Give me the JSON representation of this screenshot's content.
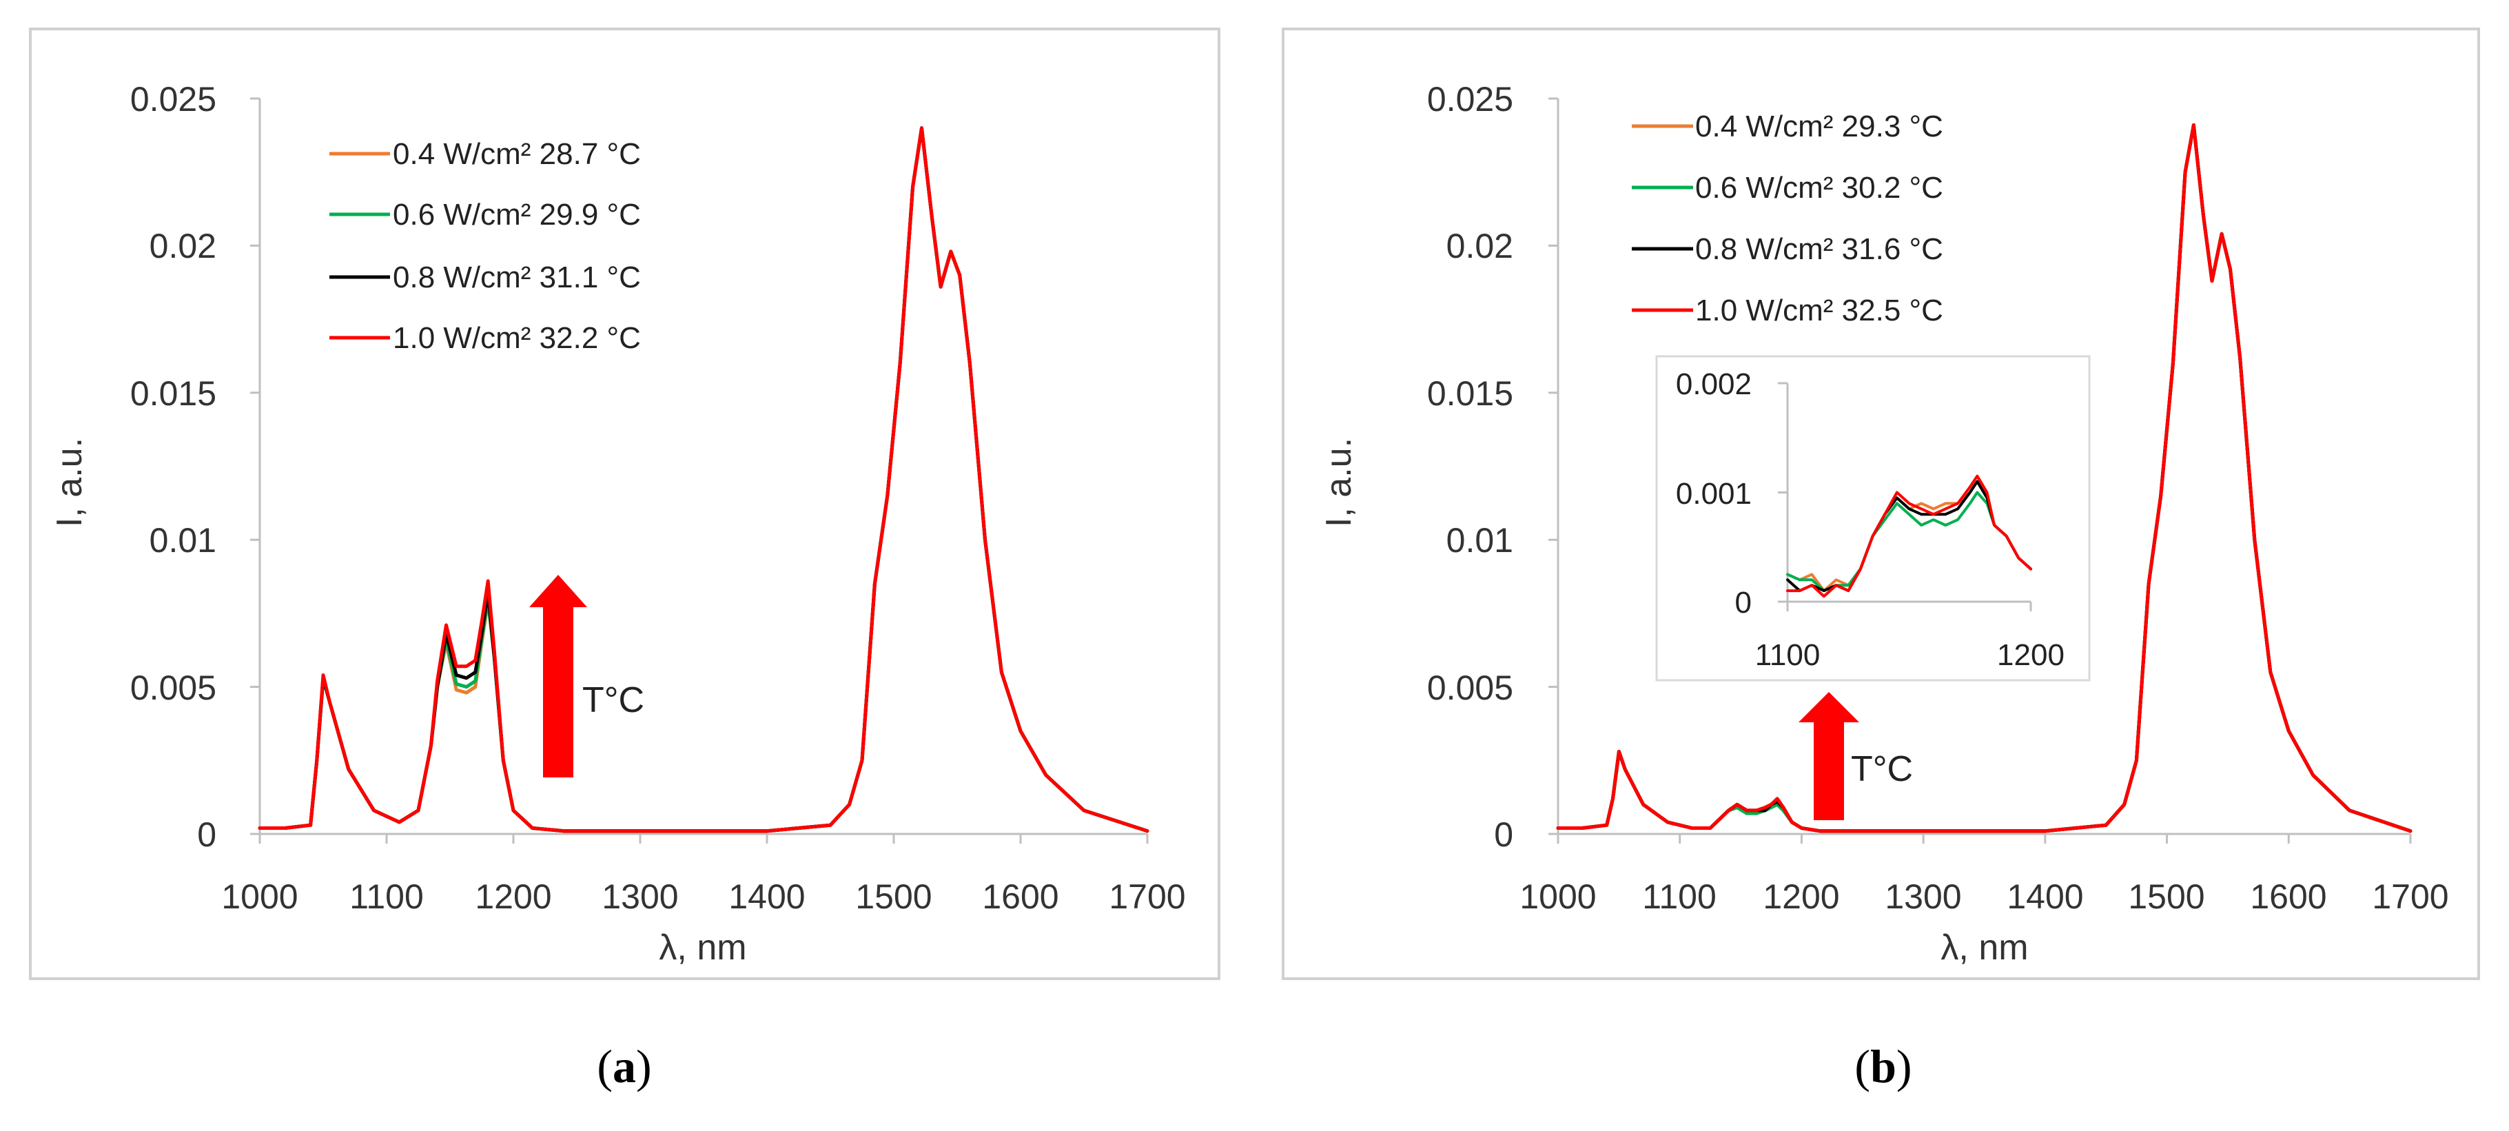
{
  "colors": {
    "orange": "#ED7D31",
    "green": "#00B050",
    "black": "#000000",
    "red": "#FF0000",
    "frame": "#d0d0d0",
    "axis": "#bfbfbf",
    "arrow": "#FF0000"
  },
  "chart_data": [
    {
      "type": "line",
      "panel_label": {
        "open": "(",
        "letter": "a",
        "close": ")"
      },
      "xlabel": "λ, nm",
      "ylabel": "I, a.u.",
      "xlim": [
        1000,
        1700
      ],
      "ylim": [
        0,
        0.025
      ],
      "xticks": [
        "1000",
        "1100",
        "1200",
        "1300",
        "1400",
        "1500",
        "1600",
        "1700"
      ],
      "yticks": [
        "0",
        "0.005",
        "0.01",
        "0.015",
        "0.02",
        "0.025"
      ],
      "legend_position": "top-left",
      "annotation": "T°C",
      "x": [
        1000,
        1020,
        1040,
        1045,
        1050,
        1055,
        1070,
        1090,
        1110,
        1125,
        1135,
        1140,
        1147,
        1155,
        1163,
        1170,
        1175,
        1180,
        1185,
        1192,
        1200,
        1215,
        1240,
        1300,
        1400,
        1450,
        1465,
        1475,
        1485,
        1495,
        1505,
        1515,
        1522,
        1530,
        1537,
        1545,
        1552,
        1560,
        1572,
        1585,
        1600,
        1620,
        1650,
        1700
      ],
      "series": [
        {
          "name": "0.4 W/cm² 28.7 °C",
          "color": "#ED7D31",
          "values": [
            0.0002,
            0.0002,
            0.0003,
            0.0025,
            0.0053,
            0.0045,
            0.0022,
            0.0008,
            0.0004,
            0.0008,
            0.003,
            0.005,
            0.0065,
            0.0049,
            0.0048,
            0.005,
            0.0065,
            0.0079,
            0.006,
            0.0025,
            0.0008,
            0.0002,
            0.0001,
            0.0001,
            0.0001,
            0.0003,
            0.001,
            0.0025,
            0.0085,
            0.0115,
            0.016,
            0.022,
            0.024,
            0.021,
            0.0186,
            0.0198,
            0.019,
            0.016,
            0.01,
            0.0055,
            0.0035,
            0.002,
            0.0008,
            0.0001
          ]
        },
        {
          "name": "0.6 W/cm² 29.9 °C",
          "color": "#00B050",
          "values": [
            0.0002,
            0.0002,
            0.0003,
            0.0025,
            0.0053,
            0.0045,
            0.0022,
            0.0008,
            0.0004,
            0.0008,
            0.003,
            0.005,
            0.0066,
            0.0051,
            0.005,
            0.0052,
            0.0066,
            0.008,
            0.006,
            0.0025,
            0.0008,
            0.0002,
            0.0001,
            0.0001,
            0.0001,
            0.0003,
            0.001,
            0.0025,
            0.0085,
            0.0115,
            0.016,
            0.022,
            0.024,
            0.021,
            0.0186,
            0.0198,
            0.019,
            0.016,
            0.01,
            0.0055,
            0.0035,
            0.002,
            0.0008,
            0.0001
          ]
        },
        {
          "name": "0.8 W/cm² 31.1 °C",
          "color": "#000000",
          "values": [
            0.0002,
            0.0002,
            0.0003,
            0.0025,
            0.0053,
            0.0045,
            0.0022,
            0.0008,
            0.0004,
            0.0008,
            0.003,
            0.005,
            0.0068,
            0.0054,
            0.0053,
            0.0055,
            0.0068,
            0.0082,
            0.006,
            0.0025,
            0.0008,
            0.0002,
            0.0001,
            0.0001,
            0.0001,
            0.0003,
            0.001,
            0.0025,
            0.0085,
            0.0115,
            0.016,
            0.022,
            0.024,
            0.021,
            0.0186,
            0.0198,
            0.019,
            0.016,
            0.01,
            0.0055,
            0.0035,
            0.002,
            0.0008,
            0.0001
          ]
        },
        {
          "name": "1.0 W/cm² 32.2 °C",
          "color": "#FF0000",
          "values": [
            0.0002,
            0.0002,
            0.0003,
            0.0025,
            0.0054,
            0.0045,
            0.0022,
            0.0008,
            0.0004,
            0.0008,
            0.003,
            0.0052,
            0.0071,
            0.0057,
            0.0057,
            0.0059,
            0.0072,
            0.0086,
            0.0062,
            0.0025,
            0.0008,
            0.0002,
            0.0001,
            0.0001,
            0.0001,
            0.0003,
            0.001,
            0.0025,
            0.0085,
            0.0115,
            0.016,
            0.022,
            0.024,
            0.021,
            0.0186,
            0.0198,
            0.019,
            0.016,
            0.01,
            0.0055,
            0.0035,
            0.002,
            0.0008,
            0.0001
          ]
        }
      ]
    },
    {
      "type": "line",
      "panel_label": {
        "open": "(",
        "letter": "b",
        "close": ")"
      },
      "xlabel": "λ, nm",
      "ylabel": "I, a.u.",
      "xlim": [
        1000,
        1700
      ],
      "ylim": [
        0,
        0.025
      ],
      "xticks": [
        "1000",
        "1100",
        "1200",
        "1300",
        "1400",
        "1500",
        "1600",
        "1700"
      ],
      "yticks": [
        "0",
        "0.005",
        "0.01",
        "0.015",
        "0.02",
        "0.025"
      ],
      "legend_position": "top-left",
      "annotation": "T°C",
      "x": [
        1000,
        1020,
        1040,
        1045,
        1050,
        1055,
        1070,
        1090,
        1110,
        1125,
        1135,
        1140,
        1147,
        1155,
        1163,
        1170,
        1175,
        1180,
        1185,
        1192,
        1200,
        1215,
        1240,
        1300,
        1400,
        1450,
        1465,
        1475,
        1485,
        1495,
        1505,
        1515,
        1522,
        1530,
        1537,
        1545,
        1552,
        1560,
        1572,
        1585,
        1600,
        1620,
        1650,
        1700
      ],
      "series": [
        {
          "name": "0.4 W/cm² 29.3 °C",
          "color": "#ED7D31",
          "values": [
            0.0002,
            0.0002,
            0.0003,
            0.0012,
            0.0028,
            0.0022,
            0.001,
            0.0004,
            0.0002,
            0.0002,
            0.0006,
            0.0008,
            0.001,
            0.0007,
            0.0008,
            0.0008,
            0.001,
            0.0011,
            0.0009,
            0.0004,
            0.0002,
            0.0001,
            0.0001,
            0.0001,
            0.0001,
            0.0003,
            0.001,
            0.0025,
            0.0085,
            0.0115,
            0.016,
            0.0225,
            0.0241,
            0.021,
            0.0188,
            0.0204,
            0.0192,
            0.0162,
            0.01,
            0.0055,
            0.0035,
            0.002,
            0.0008,
            0.0001
          ]
        },
        {
          "name": "0.6 W/cm² 30.2 °C",
          "color": "#00B050",
          "values": [
            0.0002,
            0.0002,
            0.0003,
            0.0012,
            0.0028,
            0.0022,
            0.001,
            0.0004,
            0.0002,
            0.0002,
            0.0006,
            0.0008,
            0.0009,
            0.0007,
            0.0007,
            0.0008,
            0.0009,
            0.001,
            0.0008,
            0.0004,
            0.0002,
            0.0001,
            0.0001,
            0.0001,
            0.0001,
            0.0003,
            0.001,
            0.0025,
            0.0085,
            0.0115,
            0.016,
            0.0225,
            0.0241,
            0.021,
            0.0188,
            0.0204,
            0.0192,
            0.0162,
            0.01,
            0.0055,
            0.0035,
            0.002,
            0.0008,
            0.0001
          ]
        },
        {
          "name": "0.8 W/cm² 31.6 °C",
          "color": "#000000",
          "values": [
            0.0002,
            0.0002,
            0.0003,
            0.0012,
            0.0028,
            0.0022,
            0.001,
            0.0004,
            0.0002,
            0.0002,
            0.0006,
            0.0008,
            0.001,
            0.0008,
            0.0008,
            0.0008,
            0.001,
            0.0011,
            0.0009,
            0.0004,
            0.0002,
            0.0001,
            0.0001,
            0.0001,
            0.0001,
            0.0003,
            0.001,
            0.0025,
            0.0085,
            0.0115,
            0.016,
            0.0225,
            0.0241,
            0.021,
            0.0188,
            0.0204,
            0.0192,
            0.0162,
            0.01,
            0.0055,
            0.0035,
            0.002,
            0.0008,
            0.0001
          ]
        },
        {
          "name": "1.0 W/cm² 32.5 °C",
          "color": "#FF0000",
          "values": [
            0.0002,
            0.0002,
            0.0003,
            0.0012,
            0.0028,
            0.0022,
            0.001,
            0.0004,
            0.0002,
            0.0002,
            0.0006,
            0.0008,
            0.001,
            0.0008,
            0.0008,
            0.0009,
            0.001,
            0.0012,
            0.0009,
            0.0004,
            0.0002,
            0.0001,
            0.0001,
            0.0001,
            0.0001,
            0.0003,
            0.001,
            0.0025,
            0.0085,
            0.0115,
            0.016,
            0.0225,
            0.0241,
            0.021,
            0.0188,
            0.0204,
            0.0192,
            0.0162,
            0.01,
            0.0055,
            0.0035,
            0.002,
            0.0008,
            0.0001
          ]
        }
      ],
      "inset": {
        "type": "line",
        "xlim": [
          1100,
          1200
        ],
        "ylim": [
          0,
          0.002
        ],
        "xticks": [
          "1100",
          "1200"
        ],
        "yticks": [
          "0",
          "0.001",
          "0.002"
        ],
        "x": [
          1100,
          1105,
          1110,
          1115,
          1120,
          1125,
          1130,
          1135,
          1140,
          1145,
          1150,
          1155,
          1160,
          1165,
          1170,
          1175,
          1178,
          1182,
          1185,
          1190,
          1195,
          1200
        ],
        "series": [
          {
            "name": "0.4 W/cm² 29.3 °C",
            "color": "#ED7D31",
            "values": [
              0.00025,
              0.0002,
              0.00025,
              0.0001,
              0.0002,
              0.00015,
              0.0003,
              0.0006,
              0.0008,
              0.00095,
              0.00085,
              0.0009,
              0.00085,
              0.0009,
              0.0009,
              0.001,
              0.0011,
              0.00095,
              0.0007,
              0.0006,
              0.0004,
              0.0003
            ]
          },
          {
            "name": "0.6 W/cm² 30.2 °C",
            "color": "#00B050",
            "values": [
              0.00025,
              0.0002,
              0.0002,
              0.0001,
              0.00015,
              0.00015,
              0.0003,
              0.0006,
              0.00075,
              0.0009,
              0.0008,
              0.0007,
              0.00075,
              0.0007,
              0.00075,
              0.0009,
              0.001,
              0.0009,
              0.0007,
              0.0006,
              0.0004,
              0.0003
            ]
          },
          {
            "name": "0.8 W/cm² 31.6 °C",
            "color": "#000000",
            "values": [
              0.0002,
              0.0001,
              0.00015,
              0.0001,
              0.00015,
              0.0001,
              0.0003,
              0.0006,
              0.0008,
              0.00095,
              0.00085,
              0.0008,
              0.0008,
              0.0008,
              0.00085,
              0.001,
              0.0011,
              0.00095,
              0.0007,
              0.0006,
              0.0004,
              0.0003
            ]
          },
          {
            "name": "1.0 W/cm² 32.5 °C",
            "color": "#FF0000",
            "values": [
              0.0001,
              0.0001,
              0.00015,
              5e-05,
              0.00015,
              0.0001,
              0.0003,
              0.0006,
              0.0008,
              0.001,
              0.0009,
              0.00085,
              0.0008,
              0.00085,
              0.0009,
              0.00105,
              0.00115,
              0.001,
              0.0007,
              0.0006,
              0.0004,
              0.0003
            ]
          }
        ]
      }
    }
  ]
}
